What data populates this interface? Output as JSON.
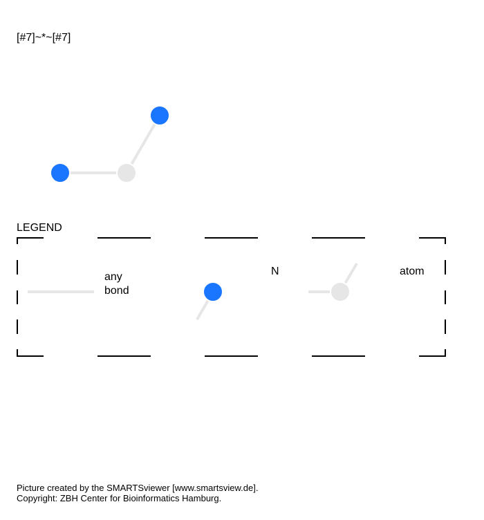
{
  "pattern": {
    "smarts": "[#7]~*~[#7]"
  },
  "molecule": {
    "atoms": [
      {
        "element": "N",
        "label": "",
        "color": "#1a75ff"
      },
      {
        "element": "*",
        "label": "",
        "color": "#e6e6e6"
      },
      {
        "element": "N",
        "label": "",
        "color": "#1a75ff"
      }
    ],
    "bonds": [
      {
        "type": "any",
        "color": "#e6e6e6"
      },
      {
        "type": "any",
        "color": "#e6e6e6"
      }
    ]
  },
  "legend": {
    "title": "LEGEND",
    "items": [
      {
        "symbol": "any-bond",
        "label_line1": "any",
        "label_line2": "bond"
      },
      {
        "symbol": "nitrogen-atom",
        "label": "N",
        "color": "#1a75ff"
      },
      {
        "symbol": "any-atom",
        "label": "atom",
        "color": "#e6e6e6"
      }
    ]
  },
  "footer": {
    "line1": "Picture created by the SMARTSviewer [www.smartsview.de].",
    "line2": "Copyright: ZBH Center for Bioinformatics Hamburg."
  },
  "colors": {
    "nitrogen": "#1a75ff",
    "any_atom": "#e6e6e6",
    "bond": "#e6e6e6",
    "legend_border": "#000000"
  }
}
